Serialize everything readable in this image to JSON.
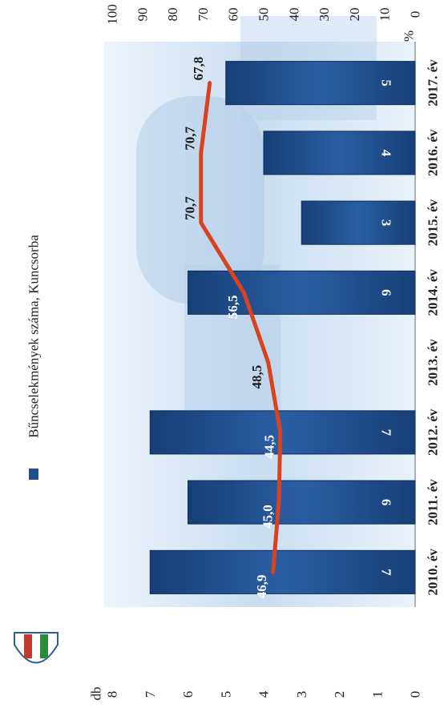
{
  "chart_data": {
    "type": "bar",
    "orientation": "rotated-90",
    "categories": [
      "2010. év",
      "2011. év",
      "2012. év",
      "2013. év",
      "2014. év",
      "2015. év",
      "2016. év",
      "2017. év"
    ],
    "series": [
      {
        "name": "Bűncselekmények száma, Kuncsorba",
        "type": "bar",
        "values": [
          7,
          6,
          7,
          null,
          6,
          3,
          4,
          5
        ],
        "labels": [
          "7",
          "6",
          "7",
          "",
          "6",
          "3",
          "4",
          "5"
        ]
      },
      {
        "type": "line",
        "values": [
          46.9,
          45.0,
          44.5,
          48.5,
          56.5,
          70.7,
          70.7,
          67.8
        ],
        "labels": [
          "46,9",
          "45,0",
          "44,5",
          "48,5",
          "56,5",
          "70,7",
          "70,7",
          "67,8"
        ]
      }
    ],
    "left_axis": {
      "label": "db",
      "ticks": [
        "0",
        "1",
        "2",
        "3",
        "4",
        "5",
        "6",
        "7",
        "8"
      ],
      "range": [
        0,
        8
      ]
    },
    "right_axis": {
      "label": "%",
      "ticks": [
        "0",
        "10",
        "20",
        "30",
        "40",
        "50",
        "60",
        "70",
        "80",
        "90",
        "100"
      ],
      "range": [
        0,
        100
      ]
    },
    "legend": {
      "label": "Bűncselekmények száma, Kuncsorba",
      "position": "top"
    },
    "colors": {
      "bar": "#1f4e8c",
      "line": "#d9421f",
      "background": "#c9ddf0"
    }
  }
}
